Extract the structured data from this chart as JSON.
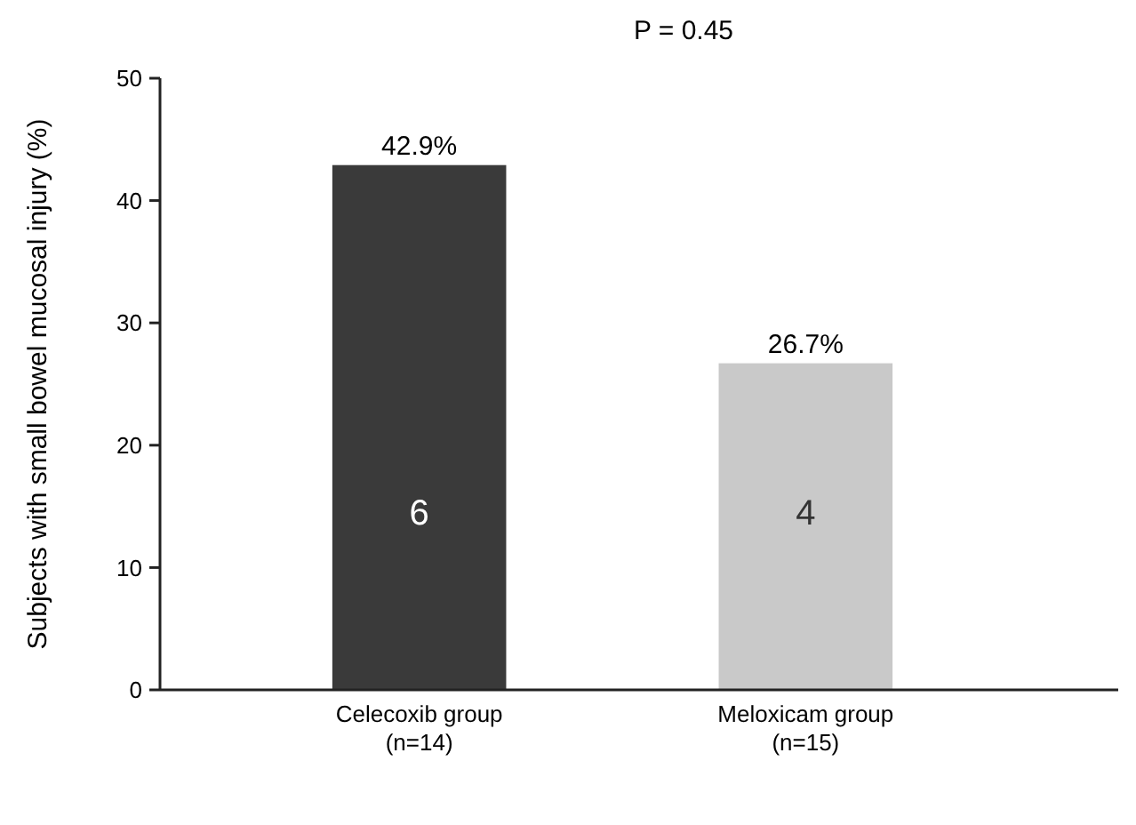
{
  "chart_data": {
    "type": "bar",
    "title": "P = 0.45",
    "ylabel": "Subjects with small bowel mucosal injury (%)",
    "categories": [
      "Celecoxib group\n(n=14)",
      "Meloxicam group\n(n=15)"
    ],
    "values": [
      42.9,
      26.7
    ],
    "colors": [
      "#3a3a3a",
      "#c9c9c9"
    ],
    "value_labels": [
      "42.9%",
      "26.7%"
    ],
    "ylim": [
      0,
      50
    ],
    "yticks": [
      0,
      10,
      20,
      30,
      40,
      50
    ],
    "grid": false,
    "annotations": [
      "6",
      "4"
    ]
  }
}
